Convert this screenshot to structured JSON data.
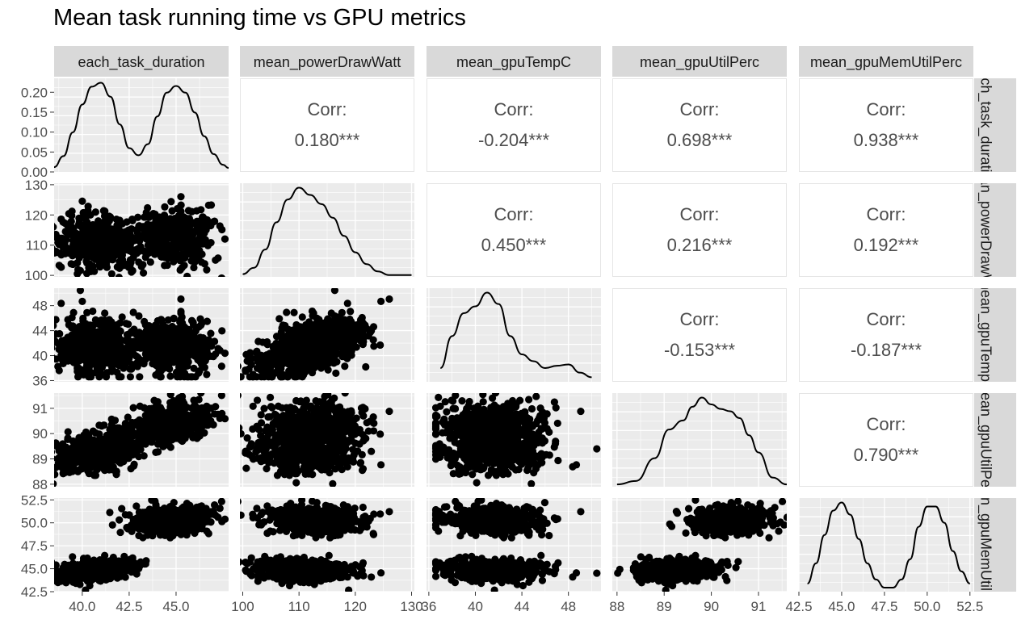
{
  "title": "Mean task running time vs GPU metrics",
  "colors": {
    "panel_bg": "#EBEBEB",
    "grid": "#FFFFFF",
    "strip_bg": "#D9D9D9",
    "points": "#000000",
    "corr_text": "#4D4D4D",
    "upper_border": "#E5E5E5"
  },
  "chart_data": {
    "type": "scatter-matrix",
    "variables": [
      "each_task_duration",
      "mean_powerDrawWatt",
      "mean_gpuTempC",
      "mean_gpuUtilPerc",
      "mean_gpuMemUtilPerc"
    ],
    "column_strips": [
      "each_task_duration",
      "mean_powerDrawWatt",
      "mean_gpuTempC",
      "mean_gpuUtilPerc",
      "mean_gpuMemUtilPerc"
    ],
    "row_strips": [
      "each_task_duration",
      "mean_powerDrawWatt",
      "mean_gpuTempC",
      "mean_gpuUtilPerc",
      "mean_gpuMemUtilPerc"
    ],
    "ranges": [
      [
        38.5,
        47.8
      ],
      [
        99.5,
        130.5
      ],
      [
        35.8,
        50.8
      ],
      [
        87.9,
        91.6
      ],
      [
        42.5,
        52.7
      ]
    ],
    "x_ticks": [
      [
        "40.0",
        "42.5",
        "45.0"
      ],
      [
        "100",
        "110",
        "120",
        "130"
      ],
      [
        "36",
        "40",
        "44",
        "48"
      ],
      [
        "88",
        "89",
        "90",
        "91"
      ],
      [
        "42.5",
        "45.0",
        "47.5",
        "50.0",
        "52.5"
      ]
    ],
    "y_ticks": [
      [
        "0.00",
        "0.05",
        "0.10",
        "0.15",
        "0.20"
      ],
      [
        "100",
        "110",
        "120",
        "130"
      ],
      [
        "36",
        "40",
        "44",
        "48"
      ],
      [
        "88",
        "89",
        "90",
        "91"
      ],
      [
        "42.5",
        "45.0",
        "47.5",
        "50.0",
        "52.5"
      ]
    ],
    "density_ylim": [
      0,
      0.235
    ],
    "densities": [
      {
        "x": [
          38.5,
          39.0,
          39.5,
          40.0,
          40.5,
          41.0,
          41.5,
          42.0,
          42.5,
          43.0,
          43.5,
          44.0,
          44.5,
          45.0,
          45.5,
          46.0,
          46.5,
          47.0,
          47.5,
          47.8
        ],
        "y": [
          0.012,
          0.04,
          0.1,
          0.17,
          0.215,
          0.225,
          0.19,
          0.12,
          0.06,
          0.042,
          0.07,
          0.14,
          0.2,
          0.217,
          0.2,
          0.15,
          0.09,
          0.045,
          0.018,
          0.01
        ]
      },
      {
        "x": [
          100,
          102,
          104,
          106,
          108,
          110,
          112,
          114,
          116,
          118,
          120,
          122,
          124,
          126,
          128,
          130
        ],
        "y": [
          0.003,
          0.01,
          0.03,
          0.06,
          0.085,
          0.098,
          0.09,
          0.08,
          0.065,
          0.045,
          0.027,
          0.014,
          0.006,
          0.002,
          0.002,
          0.002
        ]
      },
      {
        "x": [
          37,
          38,
          39,
          40,
          41,
          42,
          43,
          44,
          45,
          46,
          47,
          48,
          49,
          50
        ],
        "y": [
          0.03,
          0.1,
          0.15,
          0.165,
          0.195,
          0.17,
          0.1,
          0.06,
          0.045,
          0.03,
          0.035,
          0.038,
          0.02,
          0.01
        ]
      },
      {
        "x": [
          88.0,
          88.4,
          88.8,
          89.1,
          89.4,
          89.6,
          89.8,
          90.0,
          90.2,
          90.4,
          90.6,
          90.8,
          91.0,
          91.3,
          91.6
        ],
        "y": [
          0.02,
          0.05,
          0.25,
          0.5,
          0.58,
          0.7,
          0.78,
          0.72,
          0.68,
          0.66,
          0.6,
          0.45,
          0.3,
          0.08,
          0.02
        ]
      },
      {
        "x": [
          43.0,
          43.5,
          44.0,
          44.5,
          45.0,
          45.5,
          46.0,
          46.5,
          47.0,
          47.5,
          48.0,
          48.5,
          49.0,
          49.5,
          50.0,
          50.5,
          51.0,
          51.5,
          52.0,
          52.5
        ],
        "y": [
          0.02,
          0.07,
          0.14,
          0.2,
          0.22,
          0.19,
          0.13,
          0.07,
          0.03,
          0.01,
          0.01,
          0.03,
          0.08,
          0.16,
          0.21,
          0.21,
          0.17,
          0.1,
          0.05,
          0.02
        ]
      }
    ],
    "correlations": [
      {
        "row": 0,
        "col": 1,
        "label": "Corr:",
        "value": "0.180***"
      },
      {
        "row": 0,
        "col": 2,
        "label": "Corr:",
        "value": "-0.204***"
      },
      {
        "row": 0,
        "col": 3,
        "label": "Corr:",
        "value": "0.698***"
      },
      {
        "row": 0,
        "col": 4,
        "label": "Corr:",
        "value": "0.938***"
      },
      {
        "row": 1,
        "col": 2,
        "label": "Corr:",
        "value": "0.450***"
      },
      {
        "row": 1,
        "col": 3,
        "label": "Corr:",
        "value": "0.216***"
      },
      {
        "row": 1,
        "col": 4,
        "label": "Corr:",
        "value": "0.192***"
      },
      {
        "row": 2,
        "col": 3,
        "label": "Corr:",
        "value": "-0.153***"
      },
      {
        "row": 2,
        "col": 4,
        "label": "Corr:",
        "value": "-0.187***"
      },
      {
        "row": 3,
        "col": 4,
        "label": "Corr:",
        "value": "0.790***"
      }
    ],
    "scatter_clusters": {
      "each_task_duration": [
        {
          "mean": 40.7,
          "sd": 1.1,
          "weight": 0.5
        },
        {
          "mean": 44.8,
          "sd": 1.1,
          "weight": 0.5
        }
      ],
      "mean_powerDrawWatt": {
        "mean": 112,
        "sd": 4.5
      },
      "mean_gpuTempC": {
        "mean": 41.5,
        "sd": 2.7
      },
      "mean_gpuUtilPerc": [
        {
          "mean": 89.3,
          "sd": 0.4
        },
        {
          "mean": 90.4,
          "sd": 0.4
        }
      ],
      "mean_gpuMemUtilPerc": [
        {
          "mean": 44.9,
          "sd": 0.55
        },
        {
          "mean": 50.3,
          "sd": 0.8
        }
      ]
    }
  }
}
